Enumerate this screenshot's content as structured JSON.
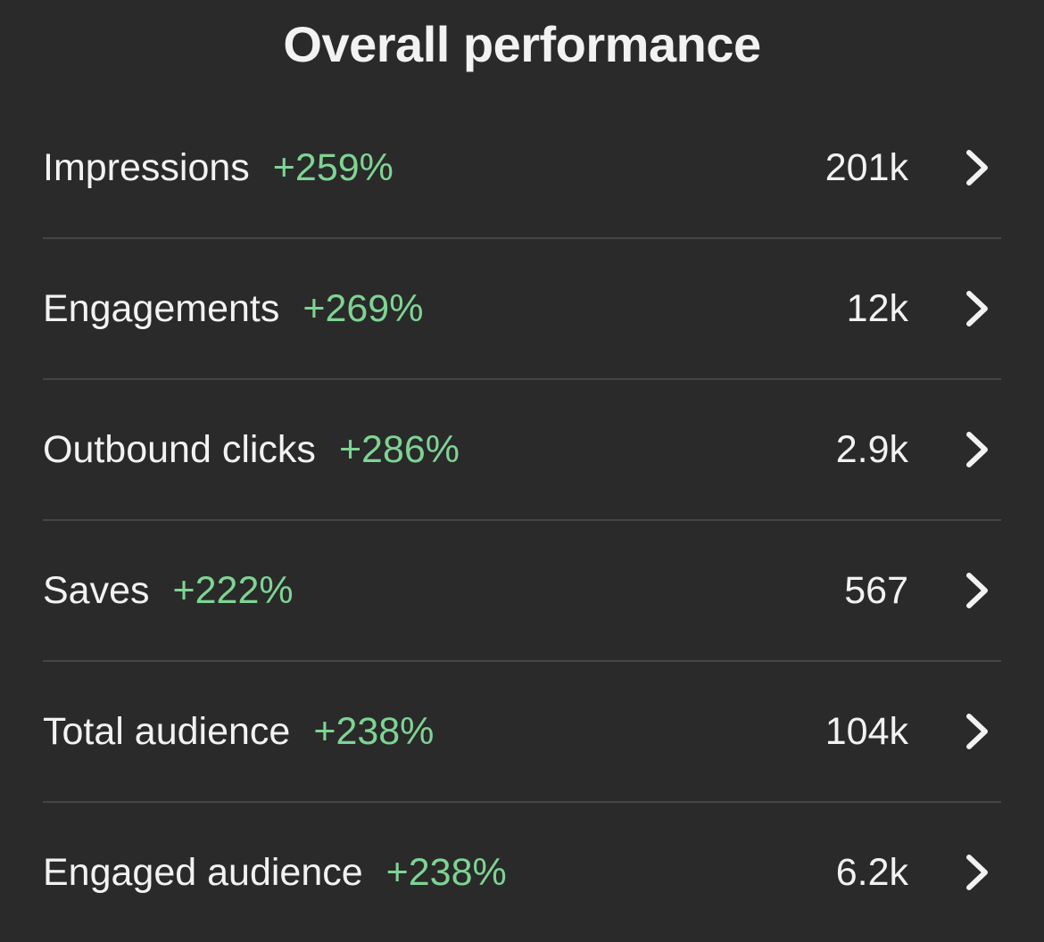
{
  "title": "Overall performance",
  "colors": {
    "background": "#2a2a2a",
    "text": "#f2f2f2",
    "positive_change": "#7ed493",
    "divider": "#454545"
  },
  "metrics": [
    {
      "label": "Impressions",
      "change": "+259%",
      "value": "201k",
      "icon": "chevron-right-icon"
    },
    {
      "label": "Engagements",
      "change": "+269%",
      "value": "12k",
      "icon": "chevron-right-icon"
    },
    {
      "label": "Outbound clicks",
      "change": "+286%",
      "value": "2.9k",
      "icon": "chevron-right-icon"
    },
    {
      "label": "Saves",
      "change": "+222%",
      "value": "567",
      "icon": "chevron-right-icon"
    },
    {
      "label": "Total audience",
      "change": "+238%",
      "value": "104k",
      "icon": "chevron-right-icon"
    },
    {
      "label": "Engaged audience",
      "change": "+238%",
      "value": "6.2k",
      "icon": "chevron-right-icon"
    }
  ]
}
